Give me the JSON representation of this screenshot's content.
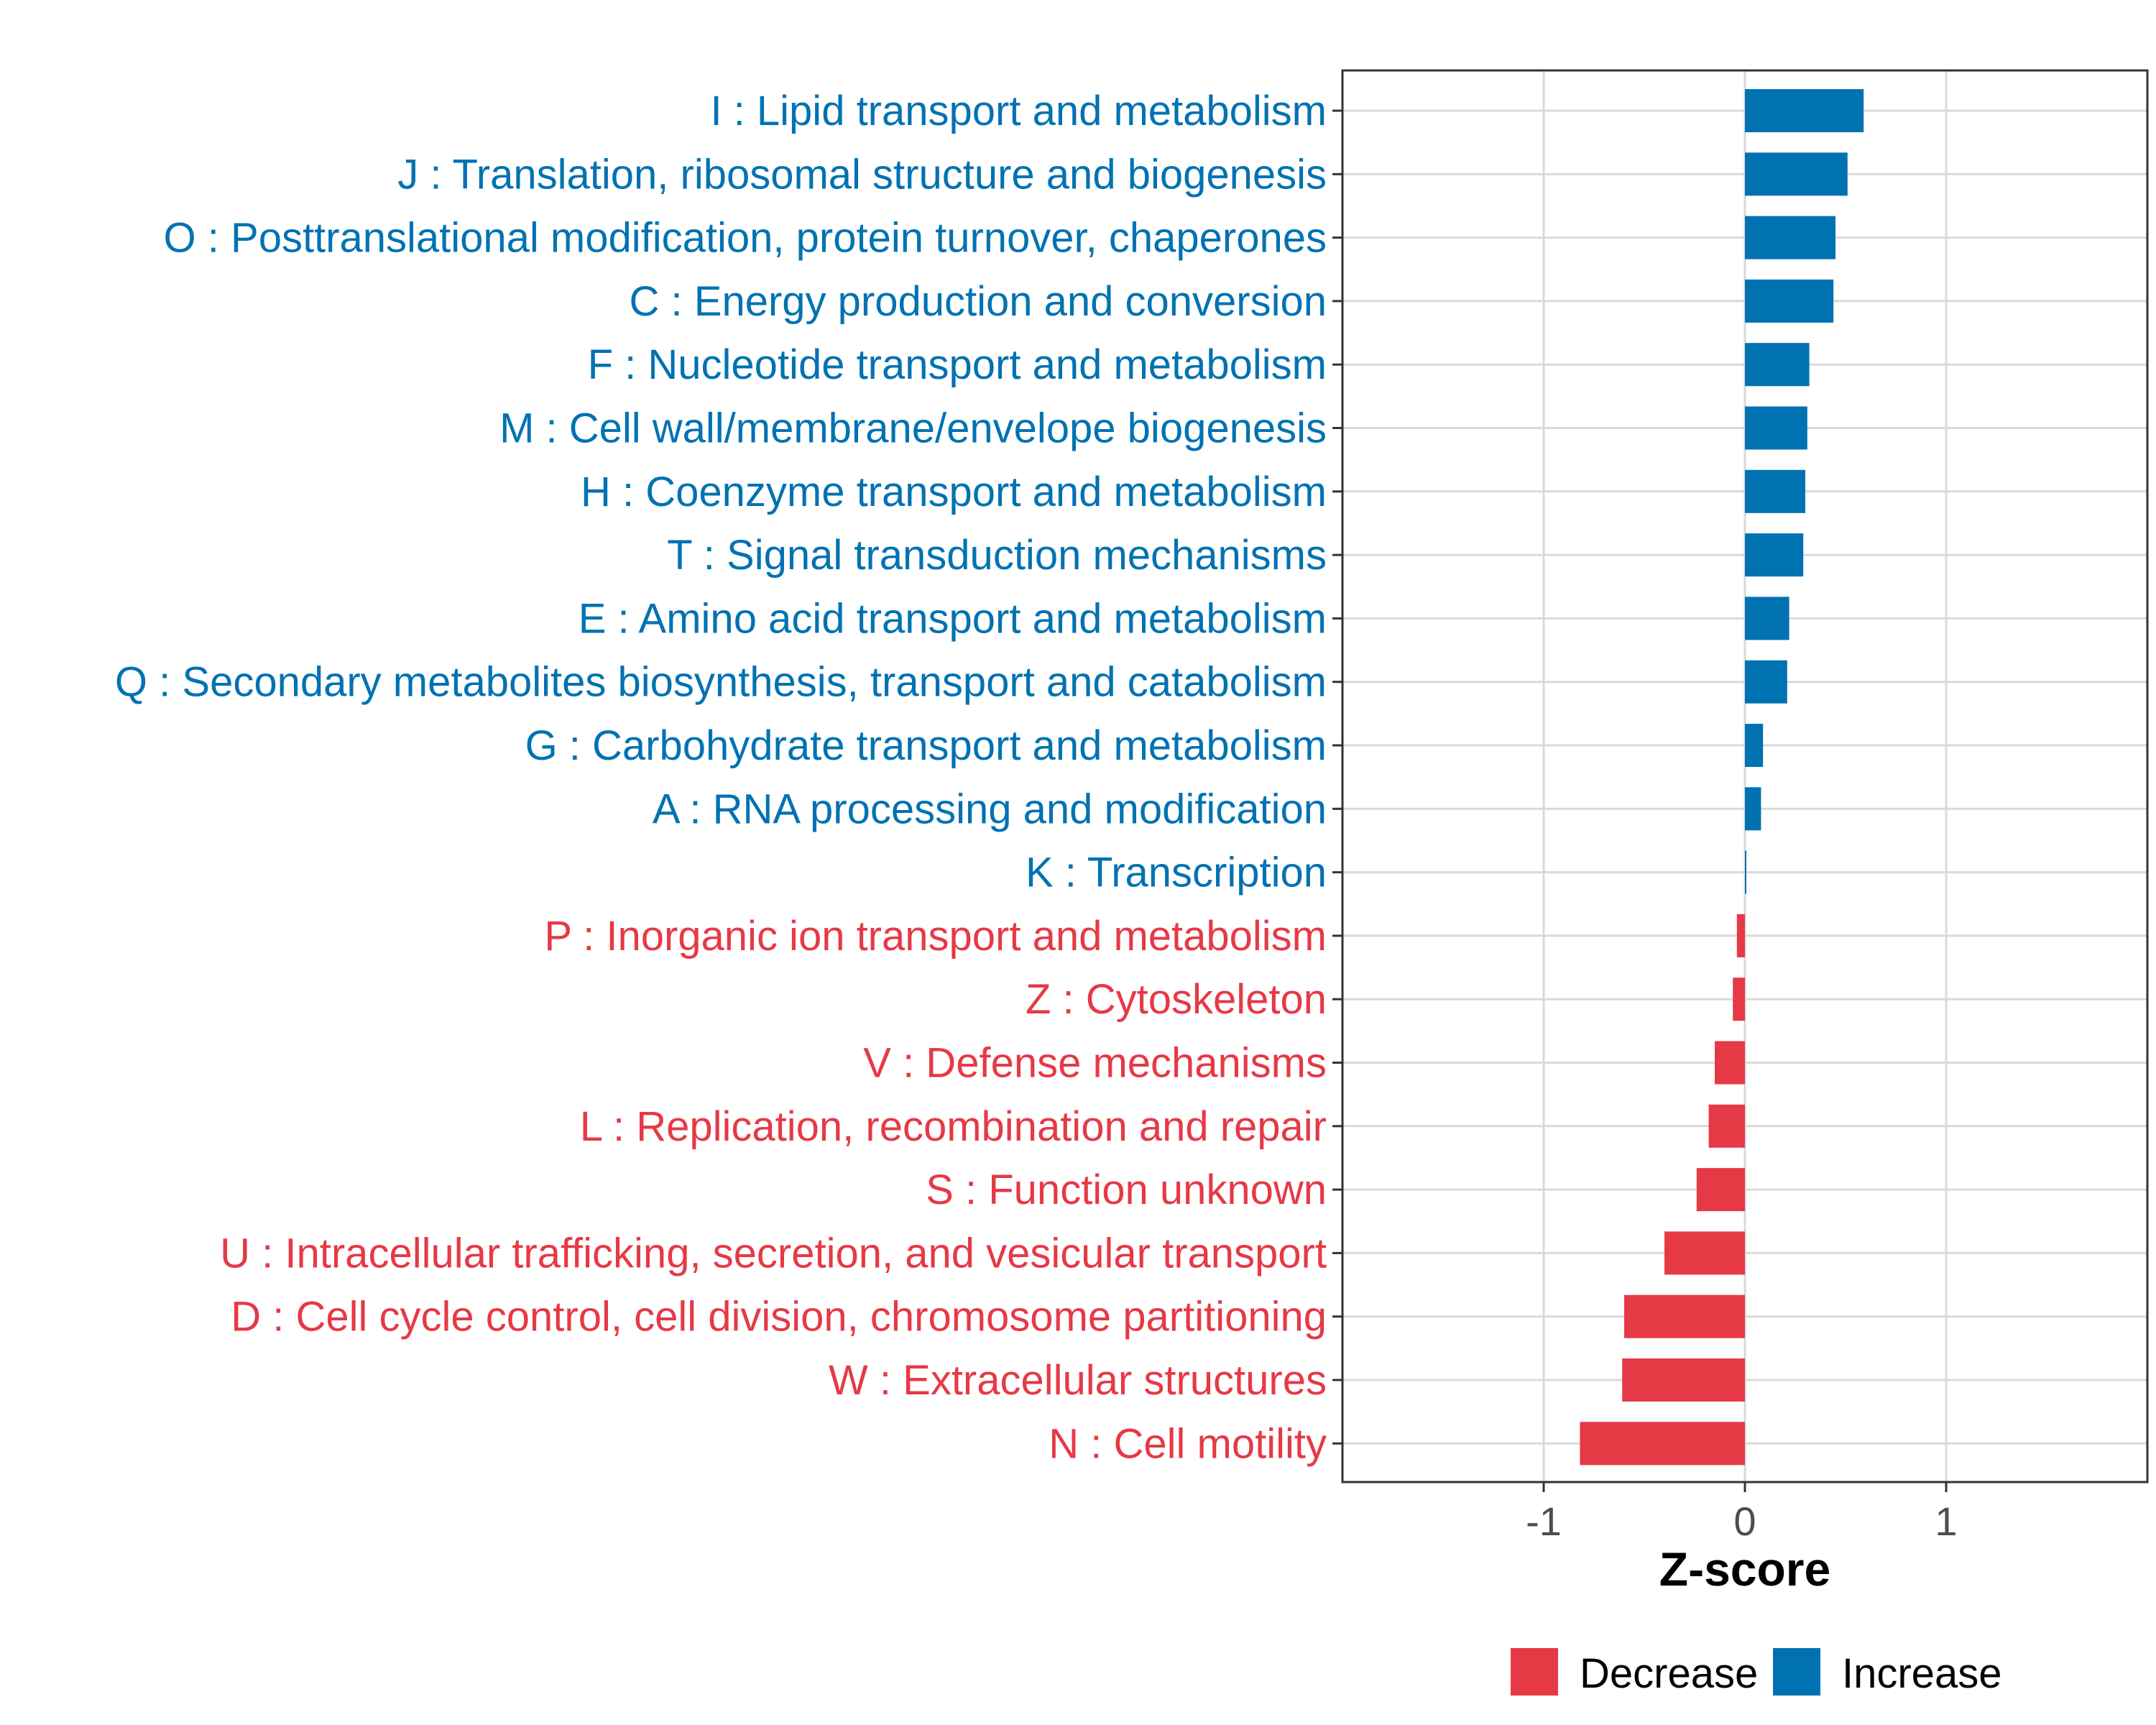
{
  "colors": {
    "increase": "#0072B2",
    "decrease": "#E63946",
    "grid": "#d9d9d9",
    "panel_border": "#333333",
    "tick_text": "#4d4d4d"
  },
  "chart_data": {
    "type": "bar",
    "orientation": "horizontal",
    "title": "",
    "xlabel": "Z-score",
    "ylabel": "",
    "xlim": [
      -2.0,
      2.0
    ],
    "xticks": [
      -1,
      0,
      1
    ],
    "xtick_labels": [
      "-1",
      "0",
      "1"
    ],
    "grid": true,
    "legend_position": "bottom",
    "categories": [
      "I : Lipid transport and metabolism",
      "J : Translation, ribosomal structure and biogenesis",
      "O : Posttranslational modification, protein turnover, chaperones",
      "C : Energy production and conversion",
      "F : Nucleotide transport and metabolism",
      "M : Cell wall/membrane/envelope biogenesis",
      "H : Coenzyme transport and metabolism",
      "T : Signal transduction mechanisms",
      "E : Amino acid transport and metabolism",
      "Q : Secondary metabolites biosynthesis, transport and catabolism",
      "G : Carbohydrate transport and metabolism",
      "A : RNA processing and modification",
      "K : Transcription",
      "P : Inorganic ion transport and metabolism",
      "Z : Cytoskeleton",
      "V : Defense mechanisms",
      "L : Replication, recombination and repair",
      "S : Function unknown",
      "U : Intracellular trafficking, secretion, and vesicular transport",
      "D : Cell cycle control, cell division, chromosome partitioning",
      "W : Extracellular structures",
      "N : Cell motility"
    ],
    "values": [
      0.59,
      0.51,
      0.45,
      0.44,
      0.32,
      0.31,
      0.3,
      0.29,
      0.22,
      0.21,
      0.09,
      0.08,
      0.005,
      -0.04,
      -0.06,
      -0.15,
      -0.18,
      -0.24,
      -0.4,
      -0.6,
      -0.61,
      -0.82
    ],
    "groups": [
      "Increase",
      "Increase",
      "Increase",
      "Increase",
      "Increase",
      "Increase",
      "Increase",
      "Increase",
      "Increase",
      "Increase",
      "Increase",
      "Increase",
      "Increase",
      "Decrease",
      "Decrease",
      "Decrease",
      "Decrease",
      "Decrease",
      "Decrease",
      "Decrease",
      "Decrease",
      "Decrease"
    ],
    "legend": [
      {
        "label": "Decrease",
        "color": "#E63946"
      },
      {
        "label": "Increase",
        "color": "#0072B2"
      }
    ]
  }
}
